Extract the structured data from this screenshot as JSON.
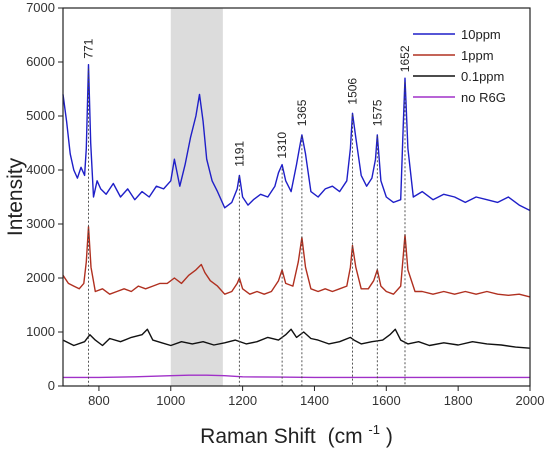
{
  "chart_data": {
    "type": "line",
    "title": "",
    "xlabel": "Raman Shift",
    "xlabel_unit_base": "(cm",
    "xlabel_unit_sup": "-1",
    "xlabel_unit_end": ")",
    "ylabel": "Intensity",
    "xlim": [
      700,
      2000
    ],
    "ylim": [
      0,
      7000
    ],
    "x_ticks": [
      800,
      1000,
      1200,
      1400,
      1600,
      1800,
      2000
    ],
    "y_ticks": [
      0,
      1000,
      2000,
      3000,
      4000,
      5000,
      6000,
      7000
    ],
    "grid": false,
    "legend_position": "top-right",
    "shaded_region": {
      "x_start": 1000,
      "x_end": 1145,
      "color": "#dcdcdc"
    },
    "peak_markers": [
      {
        "x": 771,
        "label": "771",
        "y_top": 5950
      },
      {
        "x": 1191,
        "label": "1191",
        "y_top": 3950
      },
      {
        "x": 1310,
        "label": "1310",
        "y_top": 4100
      },
      {
        "x": 1365,
        "label": "1365",
        "y_top": 4700
      },
      {
        "x": 1506,
        "label": "1506",
        "y_top": 5100
      },
      {
        "x": 1575,
        "label": "1575",
        "y_top": 4700
      },
      {
        "x": 1652,
        "label": "1652",
        "y_top": 5700
      }
    ],
    "series": [
      {
        "name": "10ppm",
        "color": "#1f1fc8",
        "x": [
          700,
          710,
          720,
          730,
          740,
          750,
          760,
          765,
          771,
          777,
          785,
          795,
          805,
          820,
          840,
          860,
          880,
          900,
          920,
          940,
          960,
          980,
          1000,
          1010,
          1025,
          1040,
          1055,
          1070,
          1080,
          1090,
          1100,
          1115,
          1130,
          1150,
          1170,
          1185,
          1191,
          1200,
          1215,
          1230,
          1250,
          1270,
          1290,
          1300,
          1310,
          1320,
          1335,
          1350,
          1358,
          1365,
          1375,
          1390,
          1410,
          1430,
          1450,
          1470,
          1490,
          1500,
          1506,
          1515,
          1530,
          1545,
          1560,
          1570,
          1575,
          1585,
          1600,
          1620,
          1640,
          1647,
          1652,
          1660,
          1675,
          1700,
          1730,
          1760,
          1790,
          1820,
          1850,
          1880,
          1910,
          1940,
          1970,
          2000
        ],
        "y": [
          5400,
          4900,
          4300,
          4000,
          3850,
          4050,
          3900,
          4400,
          5950,
          4500,
          3500,
          3800,
          3650,
          3550,
          3750,
          3500,
          3650,
          3450,
          3600,
          3500,
          3700,
          3650,
          3800,
          4200,
          3700,
          4100,
          4600,
          5000,
          5400,
          4900,
          4200,
          3800,
          3600,
          3300,
          3400,
          3650,
          3900,
          3500,
          3350,
          3450,
          3550,
          3500,
          3700,
          3950,
          4100,
          3800,
          3600,
          4100,
          4400,
          4650,
          4300,
          3600,
          3500,
          3650,
          3700,
          3600,
          3800,
          4400,
          5050,
          4600,
          3900,
          3700,
          3850,
          4200,
          4650,
          3800,
          3500,
          3400,
          3450,
          4800,
          5700,
          4400,
          3500,
          3600,
          3450,
          3550,
          3500,
          3400,
          3500,
          3450,
          3400,
          3500,
          3350,
          3250
        ]
      },
      {
        "name": "1ppm",
        "color": "#b03020",
        "x": [
          700,
          715,
          730,
          745,
          758,
          765,
          771,
          778,
          790,
          810,
          830,
          850,
          870,
          890,
          910,
          930,
          950,
          970,
          990,
          1010,
          1030,
          1050,
          1070,
          1085,
          1095,
          1110,
          1130,
          1150,
          1170,
          1185,
          1191,
          1200,
          1220,
          1240,
          1260,
          1280,
          1300,
          1310,
          1320,
          1340,
          1355,
          1365,
          1375,
          1390,
          1410,
          1430,
          1450,
          1470,
          1490,
          1500,
          1506,
          1515,
          1530,
          1550,
          1565,
          1575,
          1585,
          1600,
          1620,
          1640,
          1647,
          1652,
          1660,
          1680,
          1700,
          1730,
          1760,
          1790,
          1820,
          1850,
          1880,
          1910,
          1940,
          1970,
          2000
        ],
        "y": [
          2050,
          1900,
          1850,
          1800,
          1900,
          2300,
          2950,
          2200,
          1750,
          1800,
          1700,
          1750,
          1800,
          1750,
          1850,
          1800,
          1850,
          1900,
          1900,
          2000,
          1900,
          2050,
          2150,
          2250,
          2100,
          1950,
          1850,
          1700,
          1750,
          1900,
          2000,
          1800,
          1700,
          1750,
          1700,
          1750,
          1950,
          2150,
          1900,
          1850,
          2300,
          2750,
          2200,
          1800,
          1750,
          1800,
          1750,
          1800,
          1850,
          2200,
          2600,
          2200,
          1800,
          1800,
          1950,
          2150,
          1850,
          1750,
          1700,
          1850,
          2400,
          2800,
          2150,
          1750,
          1750,
          1700,
          1750,
          1700,
          1750,
          1700,
          1750,
          1700,
          1680,
          1700,
          1650
        ]
      },
      {
        "name": "0.1ppm",
        "color": "#111111",
        "x": [
          700,
          730,
          760,
          775,
          790,
          810,
          830,
          860,
          890,
          920,
          935,
          950,
          975,
          1000,
          1030,
          1060,
          1090,
          1120,
          1150,
          1180,
          1210,
          1240,
          1270,
          1300,
          1320,
          1335,
          1350,
          1370,
          1390,
          1410,
          1440,
          1470,
          1500,
          1510,
          1530,
          1560,
          1590,
          1610,
          1625,
          1640,
          1660,
          1690,
          1720,
          1760,
          1800,
          1840,
          1880,
          1920,
          1960,
          2000
        ],
        "y": [
          850,
          750,
          820,
          950,
          850,
          750,
          880,
          820,
          900,
          950,
          1050,
          850,
          800,
          750,
          820,
          780,
          820,
          760,
          800,
          850,
          780,
          820,
          900,
          850,
          950,
          1050,
          900,
          1000,
          880,
          850,
          780,
          820,
          900,
          850,
          780,
          820,
          850,
          950,
          1050,
          850,
          780,
          820,
          750,
          800,
          760,
          820,
          780,
          760,
          720,
          700
        ]
      },
      {
        "name": "no R6G",
        "color": "#a030c8",
        "x": [
          700,
          800,
          900,
          1000,
          1050,
          1100,
          1150,
          1200,
          1300,
          1400,
          1500,
          1600,
          1700,
          1800,
          1900,
          2000
        ],
        "y": [
          160,
          160,
          170,
          190,
          200,
          200,
          190,
          170,
          165,
          160,
          160,
          160,
          160,
          160,
          160,
          160
        ]
      }
    ]
  }
}
